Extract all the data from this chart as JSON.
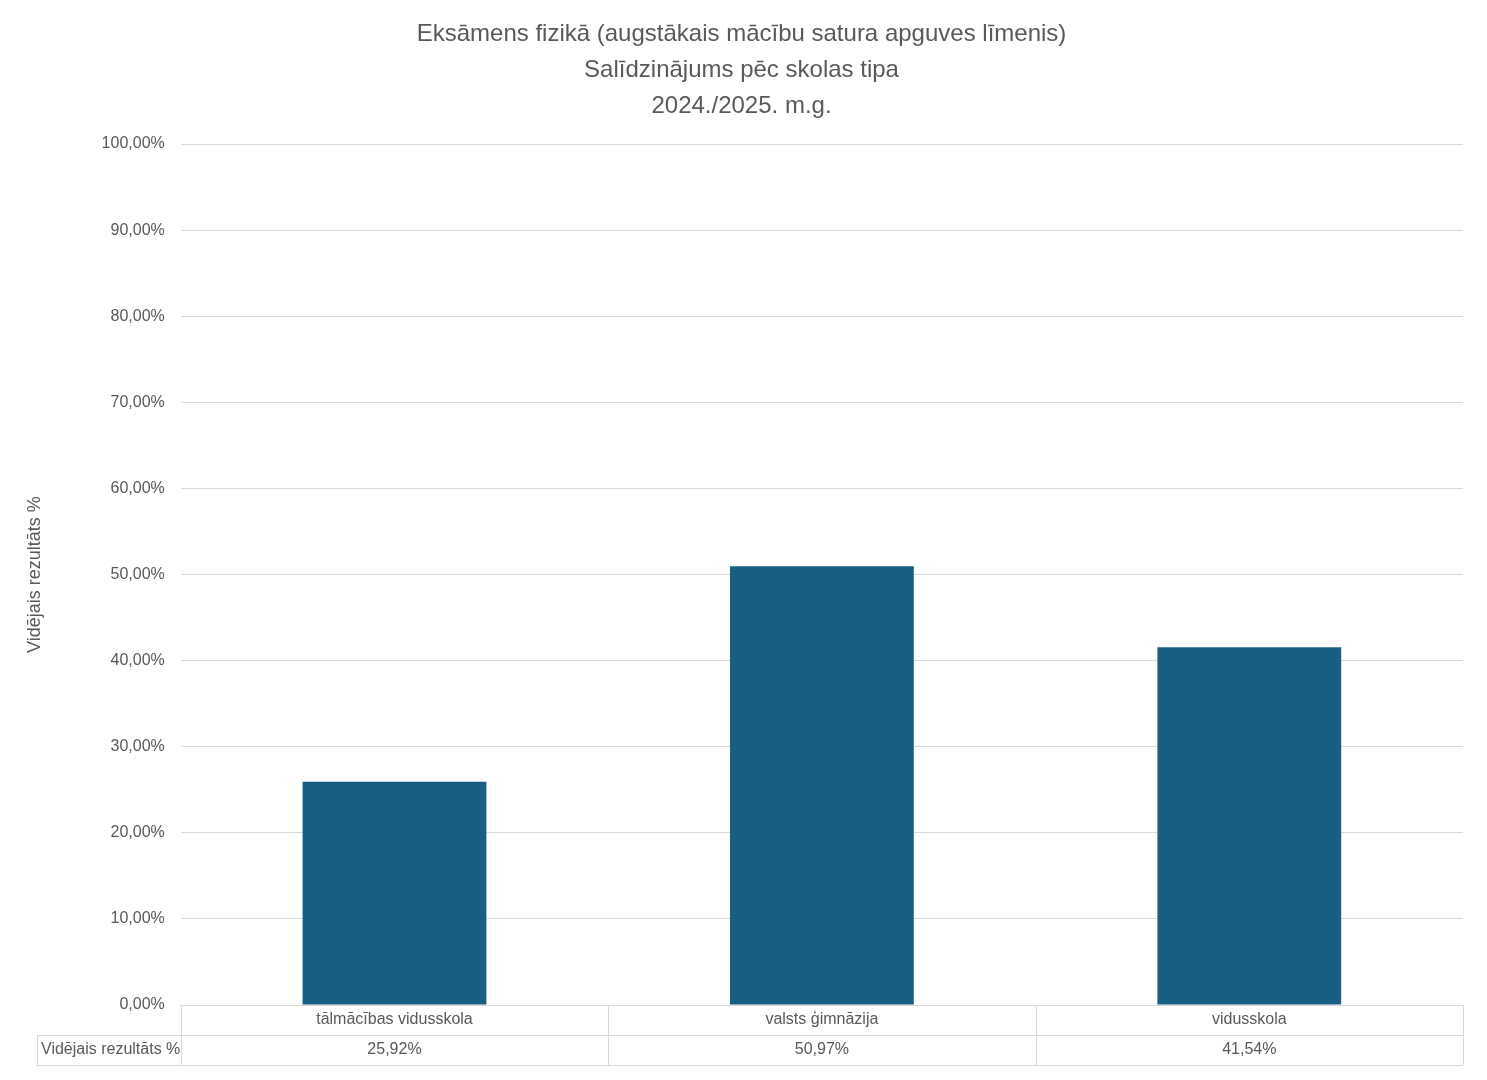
{
  "chart_data": {
    "type": "bar",
    "title": "Eksāmens fizikā (augstākais mācību satura apguves līmenis)\nSalīdzinājums pēc skolas tipa\n2024./2025. m.g.",
    "ylabel": "Vidējais rezultāts %",
    "categories": [
      "tālmācības vidusskola",
      "valsts ģimnāzija",
      "vidusskola"
    ],
    "series": [
      {
        "name": "Vidējais rezultāts %",
        "color": "#175f82",
        "values": [
          25.92,
          50.97,
          41.54
        ]
      }
    ],
    "value_labels": [
      "25,92%",
      "50,97%",
      "41,54%"
    ],
    "ylim": [
      0,
      100
    ],
    "yticks": [
      {
        "value": 0,
        "label": "0,00%"
      },
      {
        "value": 10,
        "label": "10,00%"
      },
      {
        "value": 20,
        "label": "20,00%"
      },
      {
        "value": 30,
        "label": "30,00%"
      },
      {
        "value": 40,
        "label": "40,00%"
      },
      {
        "value": 50,
        "label": "50,00%"
      },
      {
        "value": 60,
        "label": "60,00%"
      },
      {
        "value": 70,
        "label": "70,00%"
      },
      {
        "value": 80,
        "label": "80,00%"
      },
      {
        "value": 90,
        "label": "90,00%"
      },
      {
        "value": 100,
        "label": "100,00%"
      }
    ],
    "grid": "y",
    "legend": false
  }
}
